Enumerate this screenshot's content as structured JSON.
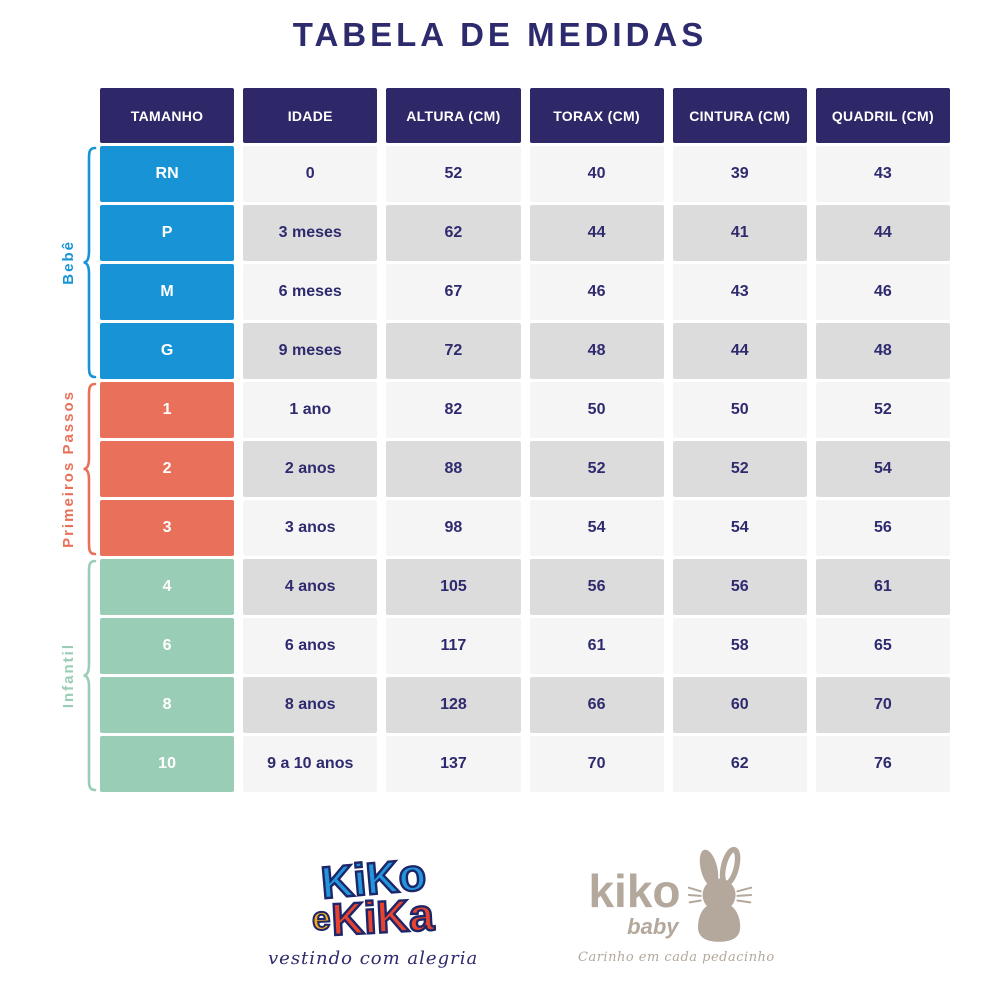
{
  "page": {
    "title": "TABELA DE MEDIDAS"
  },
  "chart_data": {
    "type": "table",
    "title": "TABELA DE MEDIDAS",
    "columns": [
      "TAMANHO",
      "IDADE",
      "ALTURA (CM)",
      "TORAX (CM)",
      "CINTURA (CM)",
      "QUADRIL (CM)"
    ],
    "groups": [
      {
        "label": "Bebê",
        "color": "#1793d6",
        "rows": [
          [
            "RN",
            "0",
            "52",
            "40",
            "39",
            "43"
          ],
          [
            "P",
            "3 meses",
            "62",
            "44",
            "41",
            "44"
          ],
          [
            "M",
            "6 meses",
            "67",
            "46",
            "43",
            "46"
          ],
          [
            "G",
            "9 meses",
            "72",
            "48",
            "44",
            "48"
          ]
        ]
      },
      {
        "label": "Primeiros Passos",
        "color": "#e9705a",
        "rows": [
          [
            "1",
            "1 ano",
            "82",
            "50",
            "50",
            "52"
          ],
          [
            "2",
            "2 anos",
            "88",
            "52",
            "52",
            "54"
          ],
          [
            "3",
            "3 anos",
            "98",
            "54",
            "54",
            "56"
          ]
        ]
      },
      {
        "label": "Infantil",
        "color": "#9acdb5",
        "rows": [
          [
            "4",
            "4 anos",
            "105",
            "56",
            "56",
            "61"
          ],
          [
            "6",
            "6 anos",
            "117",
            "61",
            "58",
            "65"
          ],
          [
            "8",
            "8 anos",
            "128",
            "66",
            "60",
            "70"
          ],
          [
            "10",
            "9 a 10 anos",
            "137",
            "70",
            "62",
            "76"
          ]
        ]
      }
    ],
    "layout": {
      "header_bg": "#2e2768",
      "row_light": "#f5f5f5",
      "row_dark": "#dcdcdc",
      "text_navy": "#2e2a6e"
    }
  },
  "logos": {
    "kiko_e_kika": {
      "word1": "KiKo",
      "connector": "e",
      "word2": "KiKa",
      "tagline": "vestindo com alegria",
      "blue": "#2196dc",
      "red": "#e8432e",
      "yellow": "#f6a81c",
      "outline": "#1d2668"
    },
    "kiko_baby": {
      "name": "kiko",
      "sub": "baby",
      "tagline": "Carinho em cada pedacinho",
      "color": "#b3a89b"
    }
  }
}
